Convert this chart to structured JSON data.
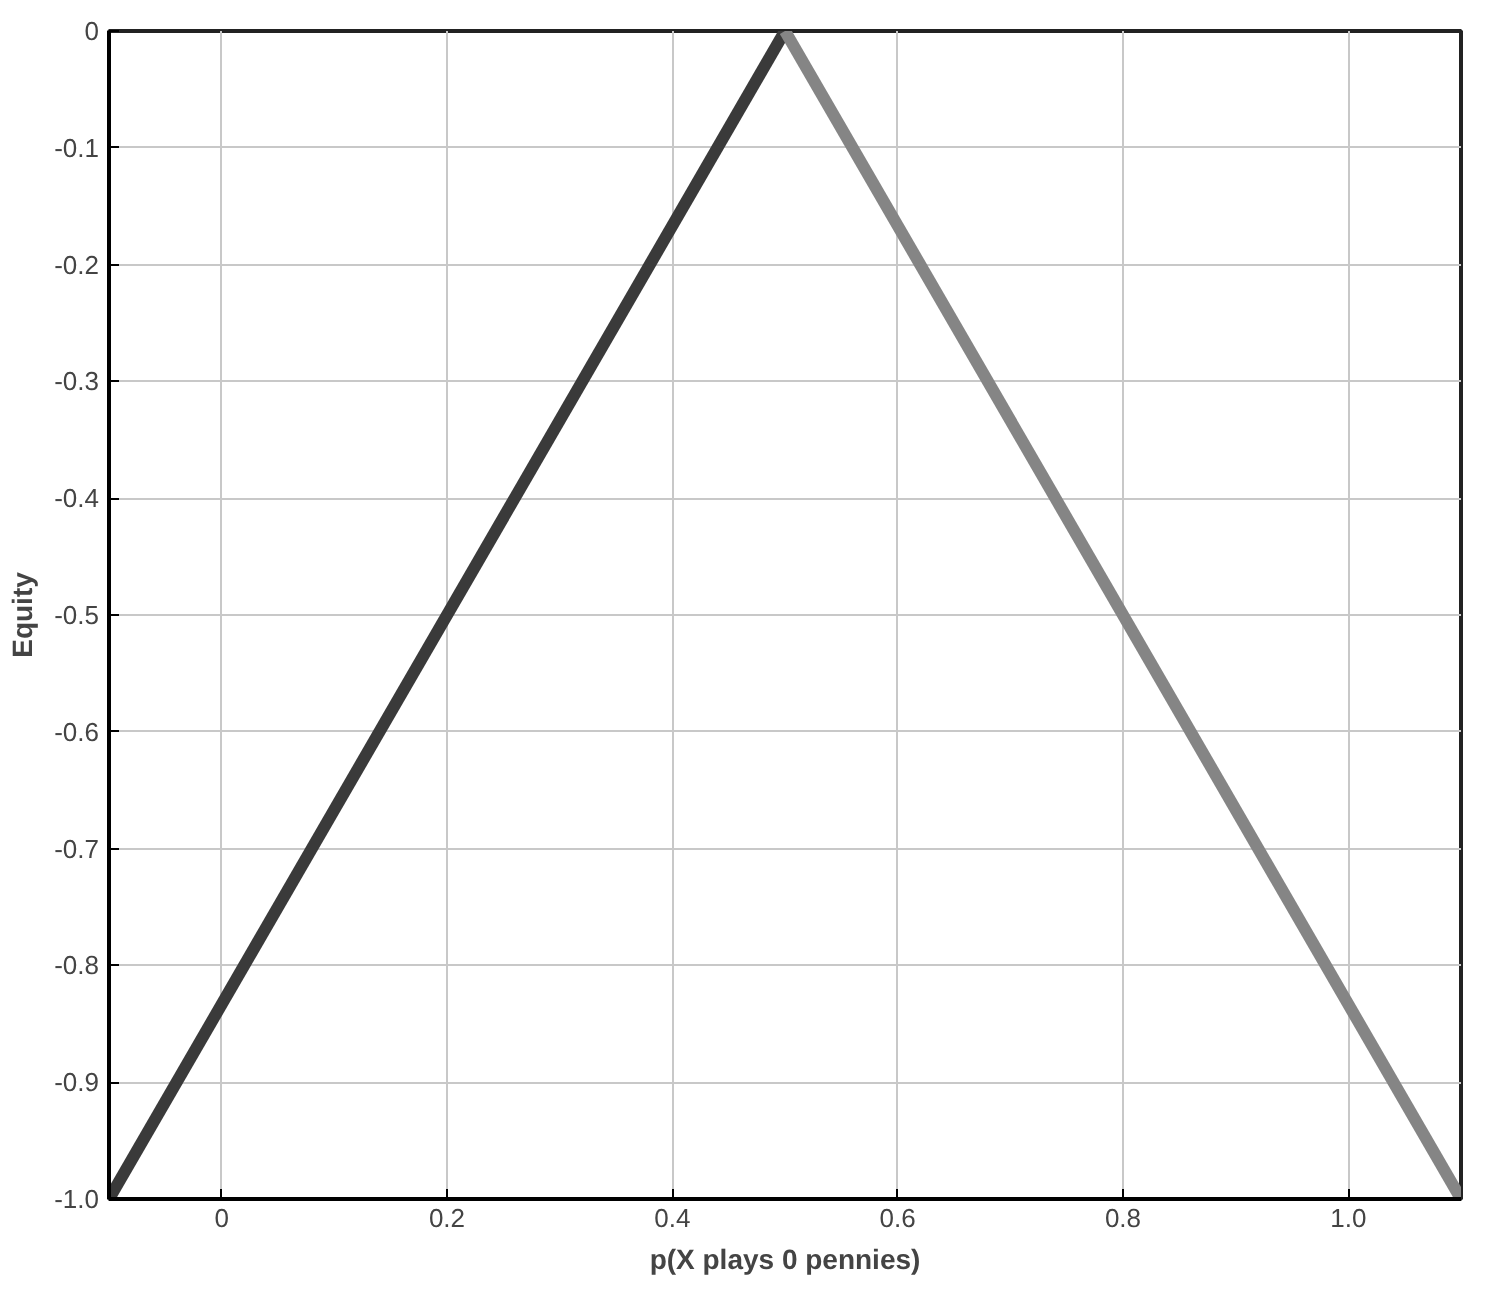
{
  "chart_data": {
    "type": "line",
    "xlabel": "p(X plays 0 pennies)",
    "ylabel": "Equity",
    "xlim": [
      -0.1,
      1.1
    ],
    "ylim": [
      -1,
      0
    ],
    "xticks": [
      0,
      0.2,
      0.4,
      0.6,
      0.8,
      {
        "value": 1,
        "label": "1.0"
      }
    ],
    "yticks": [
      0,
      -0.1,
      -0.2,
      -0.3,
      -0.4,
      -0.5,
      -0.6,
      -0.7,
      -0.8,
      -0.9,
      {
        "value": -1,
        "label": "-1.0"
      }
    ],
    "grid": true,
    "line_style": "solid",
    "series": [
      {
        "color": "#3a3a3a",
        "x": [
          -0.1,
          0.5
        ],
        "values": [
          -1,
          0
        ]
      },
      {
        "color": "#858585",
        "x": [
          0.5,
          1.1
        ],
        "values": [
          0,
          -1
        ]
      }
    ]
  }
}
